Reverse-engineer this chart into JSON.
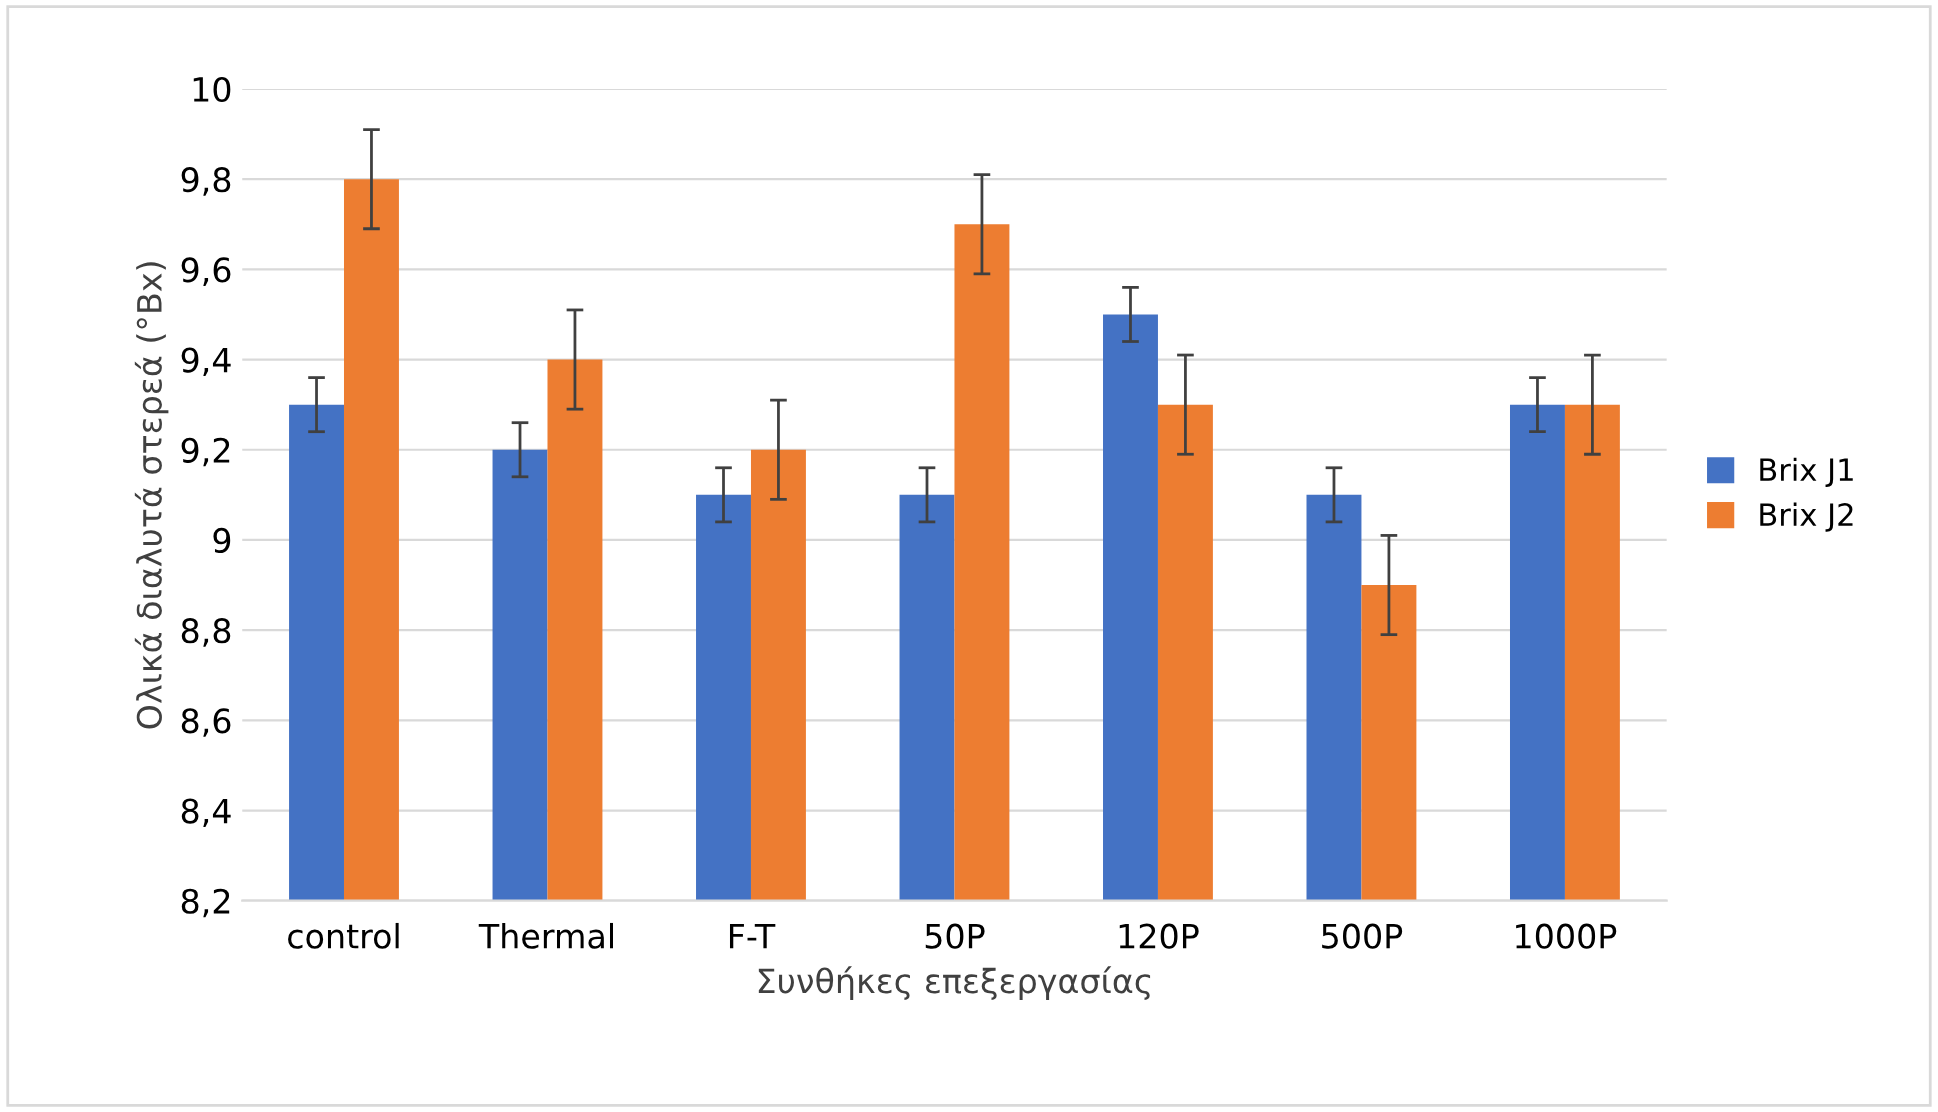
{
  "chart_data": {
    "type": "bar",
    "xlabel": "Συνθήκες επεξεργασίας",
    "ylabel": "Ολικά διαλυτά στερεά (°Bx)",
    "categories": [
      "control",
      "Thermal",
      "F-T",
      "50P",
      "120P",
      "500P",
      "1000P"
    ],
    "series": [
      {
        "name": "Brix J1",
        "color": "#4472c4",
        "values": [
          9.3,
          9.2,
          9.1,
          9.1,
          9.5,
          9.1,
          9.3
        ],
        "errors": [
          0.06,
          0.06,
          0.06,
          0.06,
          0.06,
          0.06,
          0.06
        ]
      },
      {
        "name": "Brix J2",
        "color": "#ed7d31",
        "values": [
          9.8,
          9.4,
          9.2,
          9.7,
          9.3,
          8.9,
          9.3
        ],
        "errors": [
          0.11,
          0.11,
          0.11,
          0.11,
          0.11,
          0.11,
          0.11
        ]
      }
    ],
    "ylim": [
      8.2,
      10
    ],
    "yticks": [
      {
        "value": 8.2,
        "label": "8,2"
      },
      {
        "value": 8.4,
        "label": "8,4"
      },
      {
        "value": 8.6,
        "label": "8,6"
      },
      {
        "value": 8.8,
        "label": "8,8"
      },
      9,
      {
        "value": 9.2,
        "label": "9,2"
      },
      {
        "value": 9.4,
        "label": "9,4"
      },
      {
        "value": 9.6,
        "label": "9,6"
      },
      {
        "value": 9.8,
        "label": "9,8"
      },
      10
    ],
    "grid": "y",
    "legend": "right"
  }
}
